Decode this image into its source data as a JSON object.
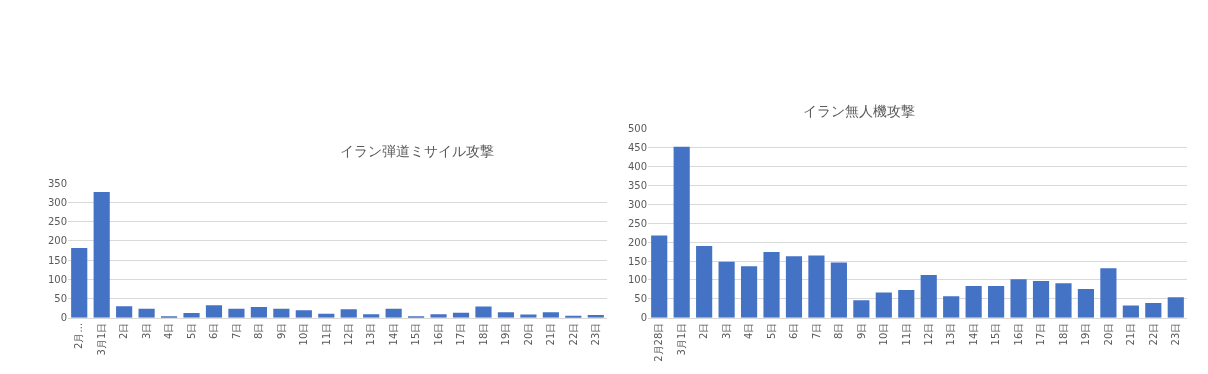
{
  "chart_data": [
    {
      "type": "bar",
      "title": "イラン弾道ミサイル攻撃",
      "categories": [
        "2月…",
        "3月1日",
        "2日",
        "3日",
        "4日",
        "5日",
        "6日",
        "7日",
        "8日",
        "9日",
        "10日",
        "11日",
        "12日",
        "13日",
        "14日",
        "15日",
        "16日",
        "17日",
        "18日",
        "19日",
        "20日",
        "21日",
        "22日",
        "23日"
      ],
      "series": [
        {
          "color": "#4472c4",
          "values": [
            181,
            327,
            30,
            23,
            2,
            12,
            32,
            23,
            28,
            23,
            19,
            10,
            22,
            9,
            23,
            2,
            9,
            13,
            29,
            14,
            8,
            14,
            5,
            7
          ]
        }
      ],
      "ylim": [
        0,
        350
      ],
      "yticks": [
        0,
        50,
        100,
        150,
        200,
        250,
        300,
        350
      ],
      "grid": "y"
    },
    {
      "type": "bar",
      "title": "イラン無人機攻撃",
      "categories": [
        "2月28日",
        "3月1日",
        "2日",
        "3日",
        "4日",
        "5日",
        "6日",
        "7日",
        "8日",
        "9日",
        "10日",
        "11日",
        "12日",
        "13日",
        "14日",
        "15日",
        "16日",
        "17日",
        "18日",
        "19日",
        "20日",
        "21日",
        "22日",
        "23日"
      ],
      "series": [
        {
          "color": "#4472c4",
          "values": [
            218,
            453,
            190,
            148,
            136,
            174,
            163,
            165,
            146,
            46,
            67,
            73,
            113,
            57,
            84,
            84,
            102,
            97,
            91,
            76,
            131,
            32,
            39,
            54
          ]
        }
      ],
      "ylim": [
        0,
        500
      ],
      "yticks": [
        0,
        50,
        100,
        150,
        200,
        250,
        300,
        350,
        400,
        450,
        500
      ],
      "grid": "y"
    }
  ]
}
